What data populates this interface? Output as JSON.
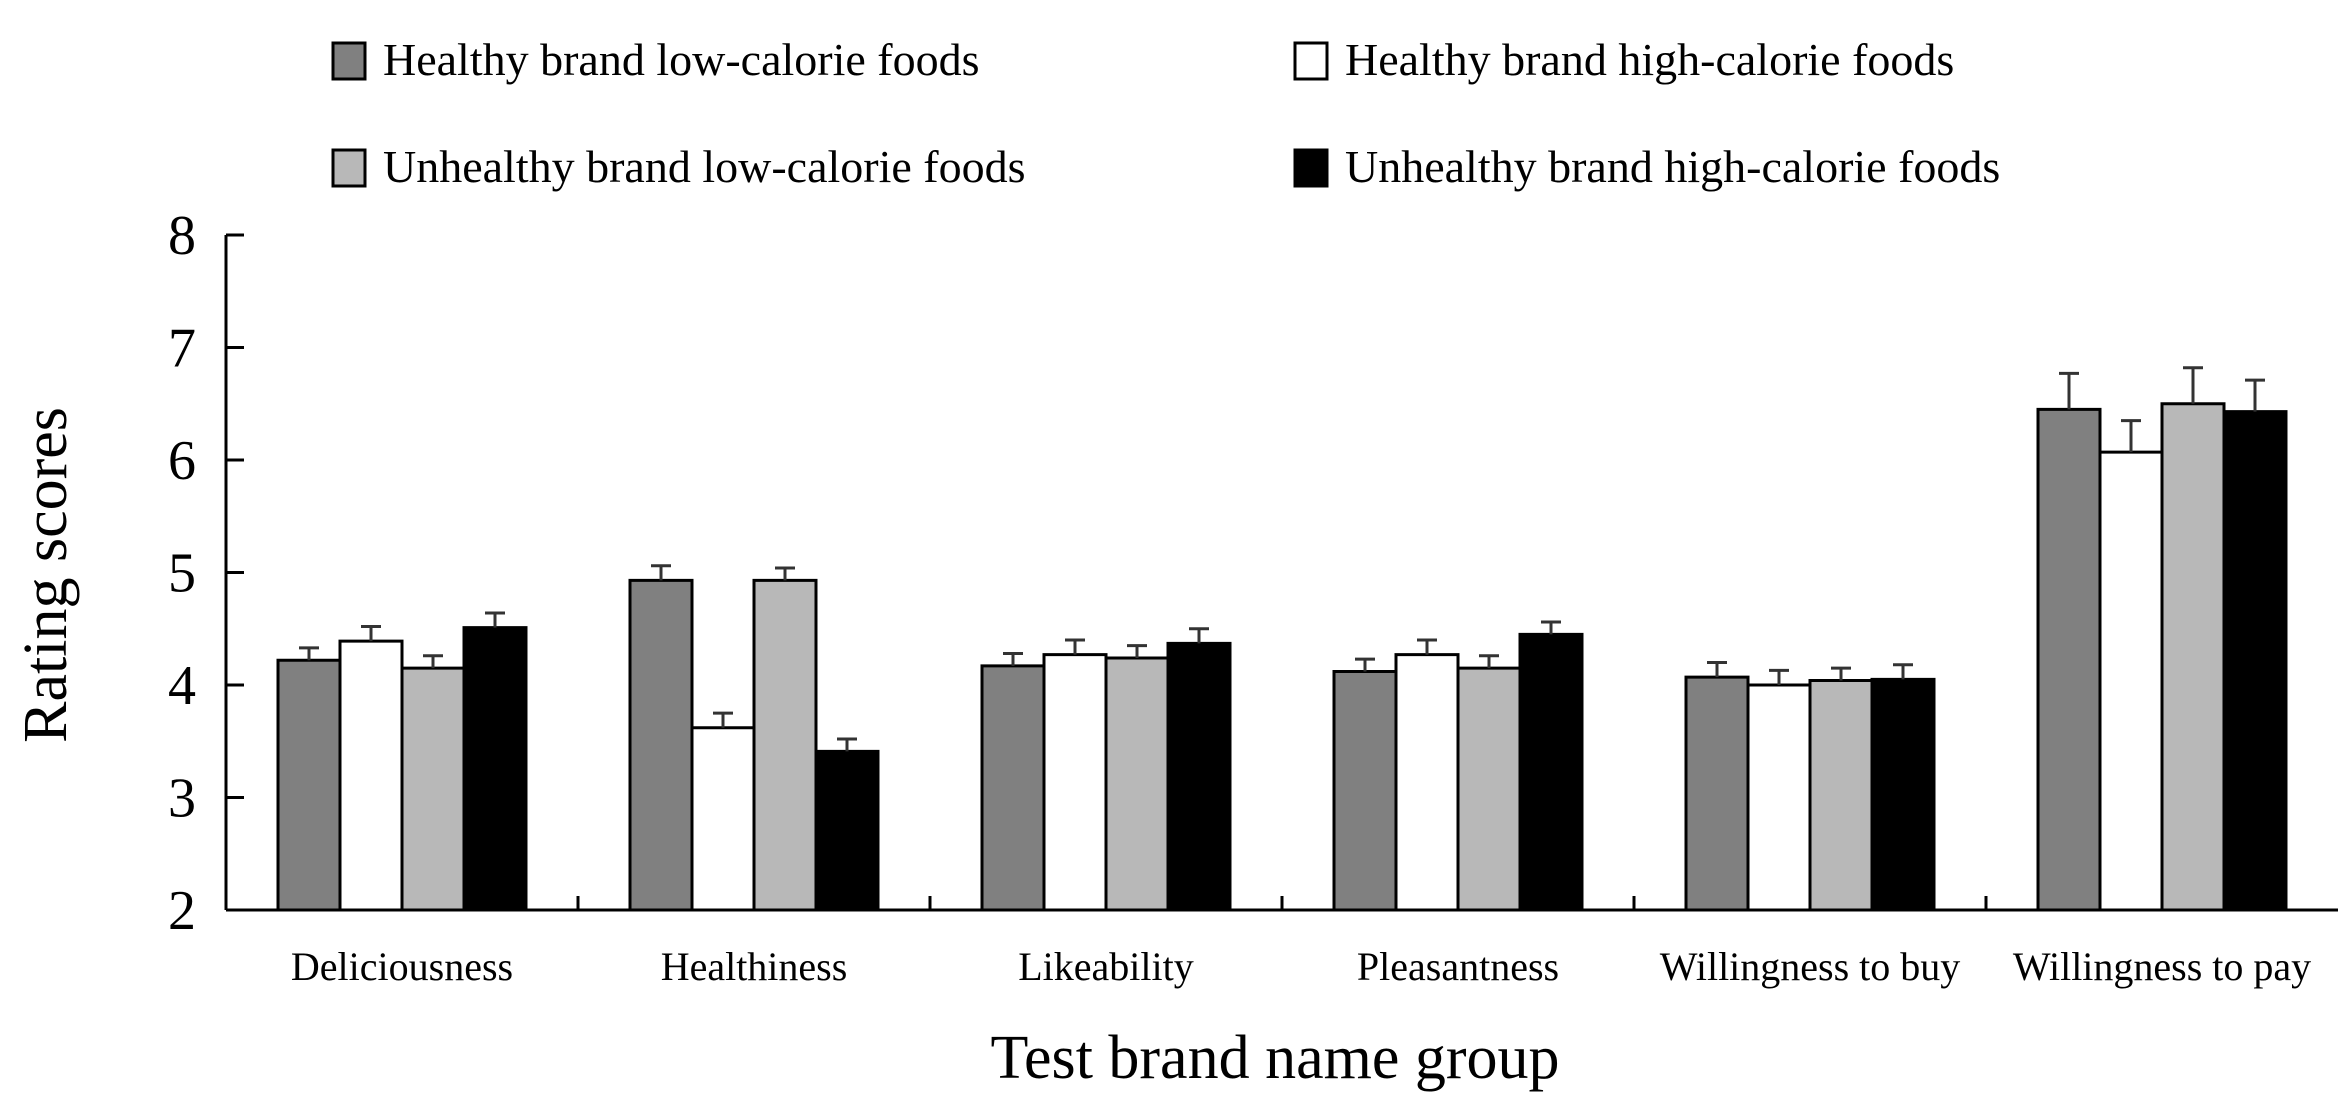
{
  "chart_data": {
    "type": "bar",
    "title": "",
    "xlabel": "Test brand name group",
    "ylabel": "Rating scores",
    "ylim": [
      2,
      8
    ],
    "yticks": [
      2,
      3,
      4,
      5,
      6,
      7,
      8
    ],
    "grid": false,
    "error_bars": true,
    "legend_position": "top",
    "categories": [
      "Deliciousness",
      "Healthiness",
      "Likeability",
      "Pleasantness",
      "Willingness to buy",
      "Willingness to pay"
    ],
    "series": [
      {
        "name": "Healthy brand low-calorie foods",
        "color": "#808080",
        "values": [
          4.22,
          4.93,
          4.17,
          4.12,
          4.07,
          6.45
        ],
        "errors": [
          0.11,
          0.13,
          0.11,
          0.11,
          0.13,
          0.32
        ]
      },
      {
        "name": "Healthy brand high-calorie foods",
        "color": "#ffffff",
        "values": [
          4.39,
          3.62,
          4.27,
          4.27,
          4.0,
          6.07
        ],
        "errors": [
          0.13,
          0.13,
          0.13,
          0.13,
          0.13,
          0.28
        ]
      },
      {
        "name": "Unhealthy brand low-calorie foods",
        "color": "#b8b8b8",
        "values": [
          4.15,
          4.93,
          4.24,
          4.15,
          4.04,
          6.5
        ],
        "errors": [
          0.11,
          0.11,
          0.11,
          0.11,
          0.11,
          0.32
        ]
      },
      {
        "name": "Unhealthy brand high-calorie foods",
        "color": "#000000",
        "values": [
          4.51,
          3.41,
          4.37,
          4.45,
          4.05,
          6.43
        ],
        "errors": [
          0.13,
          0.11,
          0.13,
          0.11,
          0.13,
          0.28
        ]
      }
    ]
  }
}
